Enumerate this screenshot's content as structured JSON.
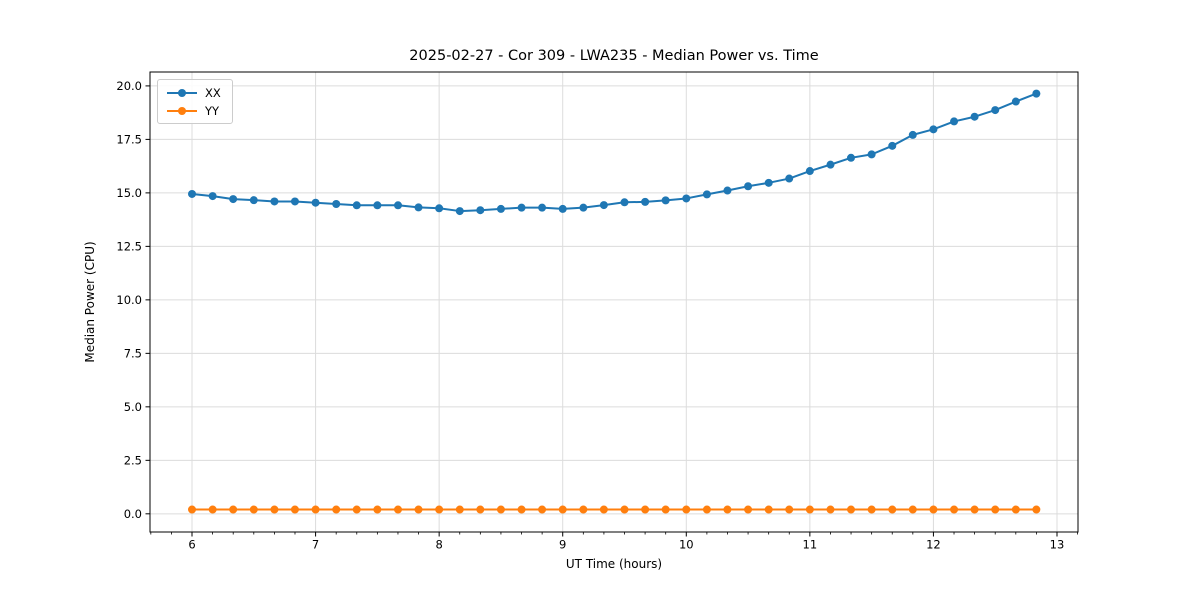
{
  "chart_data": {
    "type": "line",
    "title": "2025-02-27 - Cor 309 - LWA235 - Median Power vs. Time",
    "xlabel": "UT Time (hours)",
    "ylabel": "Median Power (CPU)",
    "grid": true,
    "legend_position": "upper-left",
    "xlim": [
      5.66,
      13.17
    ],
    "ylim": [
      -0.85,
      20.65
    ],
    "xticks": {
      "values": [
        6,
        7,
        8,
        9,
        10,
        11,
        12,
        13
      ],
      "labels": [
        "6",
        "7",
        "8",
        "9",
        "10",
        "11",
        "12",
        "13"
      ]
    },
    "yticks": {
      "values": [
        0,
        2.5,
        5,
        7.5,
        10,
        12.5,
        15,
        17.5,
        20
      ],
      "labels": [
        "0.0",
        "2.5",
        "5.0",
        "7.5",
        "10.0",
        "12.5",
        "15.0",
        "17.5",
        "20.0"
      ]
    },
    "xtick_minor_step": 0.16667,
    "x": [
      6.0,
      6.167,
      6.333,
      6.5,
      6.667,
      6.833,
      7.0,
      7.167,
      7.333,
      7.5,
      7.667,
      7.833,
      8.0,
      8.167,
      8.333,
      8.5,
      8.667,
      8.833,
      9.0,
      9.167,
      9.333,
      9.5,
      9.667,
      9.833,
      10.0,
      10.167,
      10.333,
      10.5,
      10.667,
      10.833,
      11.0,
      11.167,
      11.333,
      11.5,
      11.667,
      11.833,
      12.0,
      12.167,
      12.333,
      12.5,
      12.667,
      12.833
    ],
    "series": [
      {
        "name": "XX",
        "color": "#1f77b4",
        "values": [
          14.95,
          14.85,
          14.71,
          14.66,
          14.6,
          14.6,
          14.54,
          14.48,
          14.42,
          14.42,
          14.42,
          14.32,
          14.28,
          14.15,
          14.19,
          14.25,
          14.31,
          14.31,
          14.25,
          14.31,
          14.43,
          14.56,
          14.58,
          14.65,
          14.74,
          14.93,
          15.11,
          15.31,
          15.47,
          15.67,
          16.02,
          16.32,
          16.64,
          16.8,
          17.2,
          17.71,
          17.97,
          18.34,
          18.56,
          18.87,
          19.27,
          19.64
        ]
      },
      {
        "name": "YY",
        "color": "#ff7f0e",
        "values": [
          0.2,
          0.2,
          0.2,
          0.2,
          0.2,
          0.2,
          0.2,
          0.2,
          0.2,
          0.2,
          0.2,
          0.2,
          0.2,
          0.2,
          0.2,
          0.2,
          0.2,
          0.2,
          0.2,
          0.2,
          0.2,
          0.2,
          0.2,
          0.2,
          0.2,
          0.2,
          0.2,
          0.2,
          0.2,
          0.2,
          0.2,
          0.2,
          0.2,
          0.2,
          0.2,
          0.2,
          0.2,
          0.2,
          0.2,
          0.2,
          0.2,
          0.2
        ]
      }
    ],
    "style": {
      "grid_color": "#dcdcdc",
      "spine_color": "#000000",
      "background": "#ffffff",
      "marker_radius": 4,
      "line_width": 2
    }
  }
}
